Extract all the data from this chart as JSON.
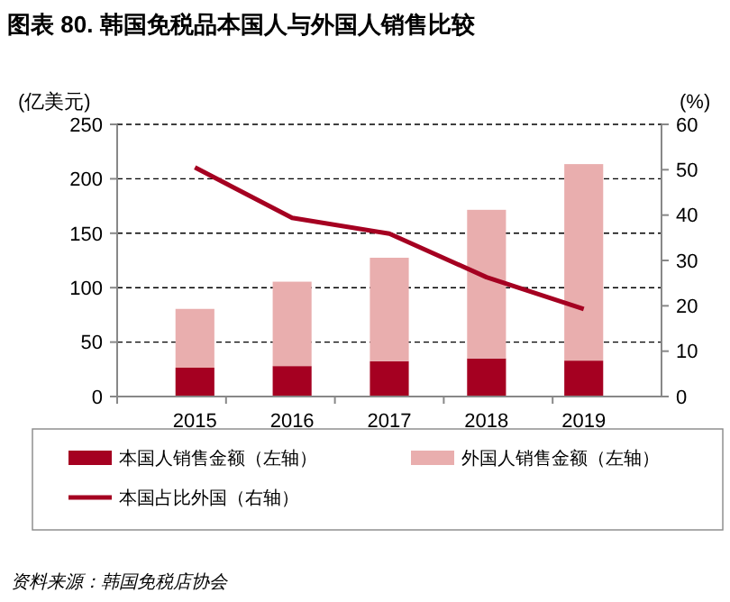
{
  "chart_data": {
    "type": "bar",
    "title": "图表 80. 韩国免税品本国人与外国人销售比较",
    "ylabel": "(亿美元)",
    "y2label": "(%)",
    "categories": [
      "2015",
      "2016",
      "2017",
      "2018",
      "2019"
    ],
    "stacked": true,
    "series": [
      {
        "name": "本国人销售金额（左轴）",
        "color": "#a50021",
        "values": [
          26.5,
          28,
          32.5,
          35,
          33
        ]
      },
      {
        "name": "外国人销售金额（左轴）",
        "color": "#e9aeae",
        "values": [
          54,
          77.5,
          95,
          136.5,
          180.5
        ]
      },
      {
        "name": "本国占比外国（右轴）",
        "type": "line",
        "axis": "y2",
        "color": "#a50021",
        "values": [
          50.5,
          39.4,
          35.9,
          26.3,
          19.3
        ]
      }
    ],
    "ylim": [
      0,
      250
    ],
    "yticks": [
      0,
      50,
      100,
      150,
      200,
      250
    ],
    "y2lim": [
      0,
      60
    ],
    "y2ticks": [
      0,
      10,
      20,
      30,
      40,
      50,
      60
    ],
    "grid": "y",
    "legend": "bottom",
    "annotations": [
      "资料来源：韩国免税店协会"
    ]
  }
}
